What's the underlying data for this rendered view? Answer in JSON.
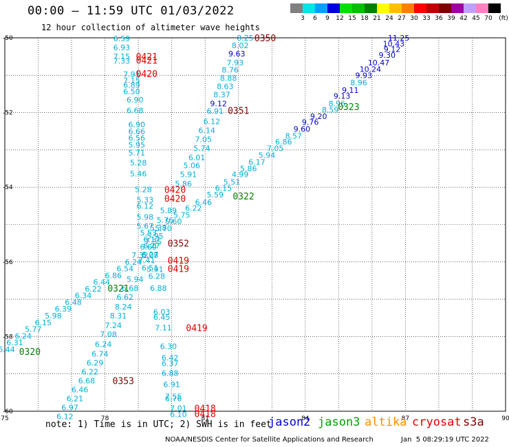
{
  "header": {
    "title": "00:00 – 11:59 UTC 01/03/2022",
    "subtitle": "12 hour collection of altimeter wave heights"
  },
  "legend": {
    "unit": "(ft)",
    "items": [
      {
        "label": "3",
        "color": "#808080"
      },
      {
        "label": "6",
        "color": "#00e5e5"
      },
      {
        "label": "9",
        "color": "#00a0ff"
      },
      {
        "label": "12",
        "color": "#0000e0"
      },
      {
        "label": "15",
        "color": "#00e000"
      },
      {
        "label": "18",
        "color": "#00c000"
      },
      {
        "label": "21",
        "color": "#008000"
      },
      {
        "label": "24",
        "color": "#ffff00"
      },
      {
        "label": "27",
        "color": "#ffc000"
      },
      {
        "label": "30",
        "color": "#ff8000"
      },
      {
        "label": "33",
        "color": "#ff0000"
      },
      {
        "label": "36",
        "color": "#c00000"
      },
      {
        "label": "39",
        "color": "#800000"
      },
      {
        "label": "42",
        "color": "#a000a0"
      },
      {
        "label": "45",
        "color": "#c0a0ff"
      },
      {
        "label": "70",
        "color": "#ff80c0"
      },
      {
        "label": "",
        "color": "#000000"
      }
    ]
  },
  "map": {
    "lon_ticks": [
      "75",
      "78",
      "81",
      "84",
      "87",
      "90"
    ],
    "lat_ticks": [
      "-50",
      "-52",
      "-54",
      "-56",
      "-58",
      "-60"
    ],
    "colors": {
      "cyan": "#00b0d8",
      "blue": "#0000c8",
      "red": "#e00000",
      "maroon": "#800000",
      "green": "#008000"
    },
    "labels": [
      {
        "t": "6.59",
        "lon": 78.5,
        "lat": -50.02,
        "c": "cyan"
      },
      {
        "t": "6.93",
        "lon": 78.5,
        "lat": -50.26,
        "c": "cyan"
      },
      {
        "t": "7.15",
        "lon": 78.5,
        "lat": -50.5,
        "c": "cyan"
      },
      {
        "t": "7.33",
        "lon": 78.5,
        "lat": -50.62,
        "c": "cyan"
      },
      {
        "t": "7.91",
        "lon": 78.8,
        "lat": -50.98,
        "c": "cyan"
      },
      {
        "t": "7.15",
        "lon": 78.8,
        "lat": -51.14,
        "c": "cyan"
      },
      {
        "t": "6.89",
        "lon": 78.8,
        "lat": -51.26,
        "c": "cyan"
      },
      {
        "t": "6.50",
        "lon": 78.8,
        "lat": -51.44,
        "c": "cyan"
      },
      {
        "t": "6.90",
        "lon": 78.9,
        "lat": -51.66,
        "c": "cyan"
      },
      {
        "t": "6.68",
        "lon": 78.9,
        "lat": -51.94,
        "c": "cyan"
      },
      {
        "t": "6.90",
        "lon": 78.95,
        "lat": -52.32,
        "c": "cyan"
      },
      {
        "t": "6.66",
        "lon": 78.95,
        "lat": -52.5,
        "c": "cyan"
      },
      {
        "t": "6.56",
        "lon": 78.95,
        "lat": -52.68,
        "c": "cyan"
      },
      {
        "t": "5.95",
        "lon": 78.95,
        "lat": -52.86,
        "c": "cyan"
      },
      {
        "t": "5.71",
        "lon": 78.95,
        "lat": -53.08,
        "c": "cyan"
      },
      {
        "t": "5.28",
        "lon": 79.0,
        "lat": -53.34,
        "c": "cyan"
      },
      {
        "t": "5.46",
        "lon": 79.0,
        "lat": -53.64,
        "c": "cyan"
      },
      {
        "t": "5.28",
        "lon": 79.15,
        "lat": -54.06,
        "c": "cyan"
      },
      {
        "t": "5.33",
        "lon": 79.2,
        "lat": -54.34,
        "c": "cyan"
      },
      {
        "t": "6.12",
        "lon": 79.2,
        "lat": -54.5,
        "c": "cyan"
      },
      {
        "t": "5.98",
        "lon": 79.2,
        "lat": -54.8,
        "c": "cyan"
      },
      {
        "t": "5.67",
        "lon": 79.2,
        "lat": -55.04,
        "c": "cyan"
      },
      {
        "t": "5.53",
        "lon": 79.3,
        "lat": -55.22,
        "c": "cyan"
      },
      {
        "t": "6.17",
        "lon": 79.4,
        "lat": -55.4,
        "c": "cyan"
      },
      {
        "t": "6.69",
        "lon": 79.3,
        "lat": -55.6,
        "c": "cyan"
      },
      {
        "t": "6.27",
        "lon": 79.35,
        "lat": -55.8,
        "c": "cyan"
      },
      {
        "t": "5.91",
        "lon": 79.5,
        "lat": -56.2,
        "c": "cyan"
      },
      {
        "t": "6.28",
        "lon": 79.55,
        "lat": -56.38,
        "c": "cyan"
      },
      {
        "t": "6.88",
        "lon": 79.6,
        "lat": -56.7,
        "c": "cyan"
      },
      {
        "t": "6.03",
        "lon": 79.7,
        "lat": -57.34,
        "c": "cyan"
      },
      {
        "t": "6.45",
        "lon": 79.7,
        "lat": -57.48,
        "c": "cyan"
      },
      {
        "t": "7.11",
        "lon": 79.75,
        "lat": -57.76,
        "c": "cyan"
      },
      {
        "t": "6.30",
        "lon": 79.9,
        "lat": -58.26,
        "c": "cyan"
      },
      {
        "t": "6.42",
        "lon": 79.95,
        "lat": -58.56,
        "c": "cyan"
      },
      {
        "t": "6.37",
        "lon": 79.95,
        "lat": -58.72,
        "c": "cyan"
      },
      {
        "t": "6.88",
        "lon": 79.95,
        "lat": -58.98,
        "c": "cyan"
      },
      {
        "t": "6.91",
        "lon": 80.0,
        "lat": -59.28,
        "c": "cyan"
      },
      {
        "t": "7.55",
        "lon": 80.05,
        "lat": -59.6,
        "c": "cyan"
      },
      {
        "t": "6.76",
        "lon": 80.05,
        "lat": -59.66,
        "c": "cyan"
      },
      {
        "t": "7.01",
        "lon": 80.2,
        "lat": -59.92,
        "c": "cyan"
      },
      {
        "t": "6.10",
        "lon": 80.2,
        "lat": -60.08,
        "c": "cyan"
      },
      {
        "t": "8.25",
        "lon": 82.2,
        "lat": -50.0,
        "c": "cyan"
      },
      {
        "t": "8.02",
        "lon": 82.05,
        "lat": -50.2,
        "c": "cyan"
      },
      {
        "t": "9.63",
        "lon": 81.95,
        "lat": -50.42,
        "c": "blue"
      },
      {
        "t": "7.93",
        "lon": 81.9,
        "lat": -50.66,
        "c": "cyan"
      },
      {
        "t": "8.76",
        "lon": 81.75,
        "lat": -50.86,
        "c": "cyan"
      },
      {
        "t": "8.88",
        "lon": 81.7,
        "lat": -51.08,
        "c": "cyan"
      },
      {
        "t": "8.63",
        "lon": 81.6,
        "lat": -51.3,
        "c": "cyan"
      },
      {
        "t": "8.37",
        "lon": 81.5,
        "lat": -51.52,
        "c": "cyan"
      },
      {
        "t": "9.12",
        "lon": 81.4,
        "lat": -51.76,
        "c": "blue"
      },
      {
        "t": "6.91",
        "lon": 81.3,
        "lat": -51.96,
        "c": "cyan"
      },
      {
        "t": "6.12",
        "lon": 81.2,
        "lat": -52.24,
        "c": "cyan"
      },
      {
        "t": "6.14",
        "lon": 81.05,
        "lat": -52.48,
        "c": "cyan"
      },
      {
        "t": "7.05",
        "lon": 80.95,
        "lat": -52.72,
        "c": "cyan"
      },
      {
        "t": "5.74",
        "lon": 80.9,
        "lat": -52.96,
        "c": "cyan"
      },
      {
        "t": "6.01",
        "lon": 80.75,
        "lat": -53.2,
        "c": "cyan"
      },
      {
        "t": "5.06",
        "lon": 80.6,
        "lat": -53.42,
        "c": "cyan"
      },
      {
        "t": "5.91",
        "lon": 80.5,
        "lat": -53.66,
        "c": "cyan"
      },
      {
        "t": "5.86",
        "lon": 80.35,
        "lat": -53.9,
        "c": "cyan"
      },
      {
        "t": "5.89",
        "lon": 79.9,
        "lat": -54.62,
        "c": "cyan"
      },
      {
        "t": "5.76",
        "lon": 79.8,
        "lat": -54.88,
        "c": "cyan"
      },
      {
        "t": "5.38",
        "lon": 79.6,
        "lat": -55.08,
        "c": "cyan"
      },
      {
        "t": "5.95",
        "lon": 79.5,
        "lat": -55.3,
        "c": "cyan"
      },
      {
        "t": "6.27",
        "lon": 79.4,
        "lat": -55.56,
        "c": "cyan"
      },
      {
        "t": "6.08",
        "lon": 79.35,
        "lat": -55.82,
        "c": "cyan"
      },
      {
        "t": "7.41",
        "lon": 79.25,
        "lat": -55.96,
        "c": "cyan"
      },
      {
        "t": "6.51",
        "lon": 79.35,
        "lat": -56.16,
        "c": "cyan"
      },
      {
        "t": "5.94",
        "lon": 78.9,
        "lat": -56.46,
        "c": "cyan"
      },
      {
        "t": "6.68",
        "lon": 78.75,
        "lat": -56.7,
        "c": "cyan"
      },
      {
        "t": "6.62",
        "lon": 78.6,
        "lat": -56.94,
        "c": "cyan"
      },
      {
        "t": "8.24",
        "lon": 78.55,
        "lat": -57.2,
        "c": "cyan"
      },
      {
        "t": "8.31",
        "lon": 78.4,
        "lat": -57.44,
        "c": "cyan"
      },
      {
        "t": "7.24",
        "lon": 78.25,
        "lat": -57.7,
        "c": "cyan"
      },
      {
        "t": "7.08",
        "lon": 78.1,
        "lat": -57.94,
        "c": "cyan"
      },
      {
        "t": "6.24",
        "lon": 77.95,
        "lat": -58.2,
        "c": "cyan"
      },
      {
        "t": "6.74",
        "lon": 77.85,
        "lat": -58.46,
        "c": "cyan"
      },
      {
        "t": "6.29",
        "lon": 77.7,
        "lat": -58.7,
        "c": "cyan"
      },
      {
        "t": "6.22",
        "lon": 77.55,
        "lat": -58.94,
        "c": "cyan"
      },
      {
        "t": "6.68",
        "lon": 77.45,
        "lat": -59.18,
        "c": "cyan"
      },
      {
        "t": "6.46",
        "lon": 77.25,
        "lat": -59.42,
        "c": "cyan"
      },
      {
        "t": "6.21",
        "lon": 77.1,
        "lat": -59.66,
        "c": "cyan"
      },
      {
        "t": "6.97",
        "lon": 76.95,
        "lat": -59.9,
        "c": "cyan"
      },
      {
        "t": "6.12",
        "lon": 76.8,
        "lat": -60.14,
        "c": "cyan"
      },
      {
        "t": "11.25",
        "lon": 86.8,
        "lat": -50.0,
        "c": "blue"
      },
      {
        "t": "10.43",
        "lon": 86.65,
        "lat": -50.16,
        "c": "blue"
      },
      {
        "t": "9.12",
        "lon": 86.6,
        "lat": -50.3,
        "c": "blue"
      },
      {
        "t": "9.30",
        "lon": 86.45,
        "lat": -50.46,
        "c": "blue"
      },
      {
        "t": "10.47",
        "lon": 86.2,
        "lat": -50.66,
        "c": "blue"
      },
      {
        "t": "10.24",
        "lon": 85.95,
        "lat": -50.84,
        "c": "blue"
      },
      {
        "t": "9.93",
        "lon": 85.75,
        "lat": -51.0,
        "c": "blue"
      },
      {
        "t": "8.96",
        "lon": 85.6,
        "lat": -51.2,
        "c": "cyan"
      },
      {
        "t": "9.11",
        "lon": 85.35,
        "lat": -51.4,
        "c": "blue"
      },
      {
        "t": "9.13",
        "lon": 85.1,
        "lat": -51.56,
        "c": "blue"
      },
      {
        "t": "8.96",
        "lon": 84.95,
        "lat": -51.76,
        "c": "cyan"
      },
      {
        "t": "8.59",
        "lon": 84.75,
        "lat": -51.92,
        "c": "cyan"
      },
      {
        "t": "9.20",
        "lon": 84.4,
        "lat": -52.1,
        "c": "blue"
      },
      {
        "t": "9.76",
        "lon": 84.15,
        "lat": -52.26,
        "c": "blue"
      },
      {
        "t": "9.60",
        "lon": 83.9,
        "lat": -52.44,
        "c": "blue"
      },
      {
        "t": "8.57",
        "lon": 83.65,
        "lat": -52.62,
        "c": "cyan"
      },
      {
        "t": "6.86",
        "lon": 83.35,
        "lat": -52.78,
        "c": "cyan"
      },
      {
        "t": "7.05",
        "lon": 83.1,
        "lat": -52.96,
        "c": "cyan"
      },
      {
        "t": "5.94",
        "lon": 82.85,
        "lat": -53.14,
        "c": "cyan"
      },
      {
        "t": "6.17",
        "lon": 82.55,
        "lat": -53.32,
        "c": "cyan"
      },
      {
        "t": "5.86",
        "lon": 82.3,
        "lat": -53.5,
        "c": "cyan"
      },
      {
        "t": "4.99",
        "lon": 82.05,
        "lat": -53.66,
        "c": "cyan"
      },
      {
        "t": "5.51",
        "lon": 81.8,
        "lat": -53.86,
        "c": "cyan"
      },
      {
        "t": "6.15",
        "lon": 81.55,
        "lat": -54.02,
        "c": "cyan"
      },
      {
        "t": "5.59",
        "lon": 81.3,
        "lat": -54.2,
        "c": "cyan"
      },
      {
        "t": "6.46",
        "lon": 80.95,
        "lat": -54.4,
        "c": "cyan"
      },
      {
        "t": "6.22",
        "lon": 80.65,
        "lat": -54.56,
        "c": "cyan"
      },
      {
        "t": "5.75",
        "lon": 80.3,
        "lat": -54.74,
        "c": "cyan"
      },
      {
        "t": "5.60",
        "lon": 80.05,
        "lat": -54.92,
        "c": "cyan"
      },
      {
        "t": "5.70",
        "lon": 79.75,
        "lat": -55.1,
        "c": "cyan"
      },
      {
        "t": "7.35",
        "lon": 79.45,
        "lat": -55.46,
        "c": "cyan"
      },
      {
        "t": "7.32",
        "lon": 79.05,
        "lat": -55.82,
        "c": "cyan"
      },
      {
        "t": "6.24",
        "lon": 78.85,
        "lat": -56.0,
        "c": "cyan"
      },
      {
        "t": "6.54",
        "lon": 78.6,
        "lat": -56.18,
        "c": "cyan"
      },
      {
        "t": "6.86",
        "lon": 78.25,
        "lat": -56.36,
        "c": "cyan"
      },
      {
        "t": "6.44",
        "lon": 77.9,
        "lat": -56.54,
        "c": "cyan"
      },
      {
        "t": "6.22",
        "lon": 77.65,
        "lat": -56.72,
        "c": "cyan"
      },
      {
        "t": "6.34",
        "lon": 77.35,
        "lat": -56.9,
        "c": "cyan"
      },
      {
        "t": "6.48",
        "lon": 77.05,
        "lat": -57.08,
        "c": "cyan"
      },
      {
        "t": "6.39",
        "lon": 76.75,
        "lat": -57.26,
        "c": "cyan"
      },
      {
        "t": "5.98",
        "lon": 76.45,
        "lat": -57.44,
        "c": "cyan"
      },
      {
        "t": "6.15",
        "lon": 76.15,
        "lat": -57.62,
        "c": "cyan"
      },
      {
        "t": "5.77",
        "lon": 75.85,
        "lat": -57.8,
        "c": "cyan"
      },
      {
        "t": "6.24",
        "lon": 75.55,
        "lat": -57.98,
        "c": "cyan"
      },
      {
        "t": "6.31",
        "lon": 75.3,
        "lat": -58.16,
        "c": "cyan"
      },
      {
        "t": "6.44",
        "lon": 75.05,
        "lat": -58.34,
        "c": "cyan"
      }
    ],
    "times": [
      {
        "t": "0350",
        "lon": 82.8,
        "lat": -50.0,
        "c": "maroon"
      },
      {
        "t": "0421",
        "lon": 79.25,
        "lat": -50.5,
        "c": "red"
      },
      {
        "t": "0421",
        "lon": 79.25,
        "lat": -50.6,
        "c": "red"
      },
      {
        "t": "0420",
        "lon": 79.25,
        "lat": -50.96,
        "c": "red"
      },
      {
        "t": "0351",
        "lon": 82.0,
        "lat": -51.94,
        "c": "maroon"
      },
      {
        "t": "0323",
        "lon": 85.3,
        "lat": -51.84,
        "c": "green"
      },
      {
        "t": "0420",
        "lon": 80.1,
        "lat": -54.06,
        "c": "red"
      },
      {
        "t": "0420",
        "lon": 80.1,
        "lat": -54.3,
        "c": "red"
      },
      {
        "t": "0322",
        "lon": 82.15,
        "lat": -54.24,
        "c": "green"
      },
      {
        "t": "0352",
        "lon": 80.2,
        "lat": -55.5,
        "c": "maroon"
      },
      {
        "t": "0419",
        "lon": 80.2,
        "lat": -55.96,
        "c": "red"
      },
      {
        "t": "0419",
        "lon": 80.2,
        "lat": -56.18,
        "c": "red"
      },
      {
        "t": "0321",
        "lon": 78.4,
        "lat": -56.7,
        "c": "green"
      },
      {
        "t": "0419",
        "lon": 80.75,
        "lat": -57.76,
        "c": "red"
      },
      {
        "t": "0320",
        "lon": 75.75,
        "lat": -58.4,
        "c": "green"
      },
      {
        "t": "0353",
        "lon": 78.55,
        "lat": -59.18,
        "c": "maroon"
      },
      {
        "t": "0418",
        "lon": 81.0,
        "lat": -59.92,
        "c": "red"
      },
      {
        "t": "0418",
        "lon": 81.0,
        "lat": -60.06,
        "c": "red"
      }
    ]
  },
  "footer": {
    "note": "note: 1) Time is in UTC; 2) SWH is in feet",
    "satellites": [
      {
        "name": "jason2",
        "color": "#0000e0"
      },
      {
        "name": "jason3",
        "color": "#00a000"
      },
      {
        "name": "altika",
        "color": "#ff8c00"
      },
      {
        "name": "cryosat",
        "color": "#e00000"
      },
      {
        "name": "s3a",
        "color": "#800000"
      }
    ],
    "credit": "NOAA/NESDIS Center for Satellite Applications and Research",
    "timestamp": "Jan  5 08:29:19 UTC 2022"
  }
}
